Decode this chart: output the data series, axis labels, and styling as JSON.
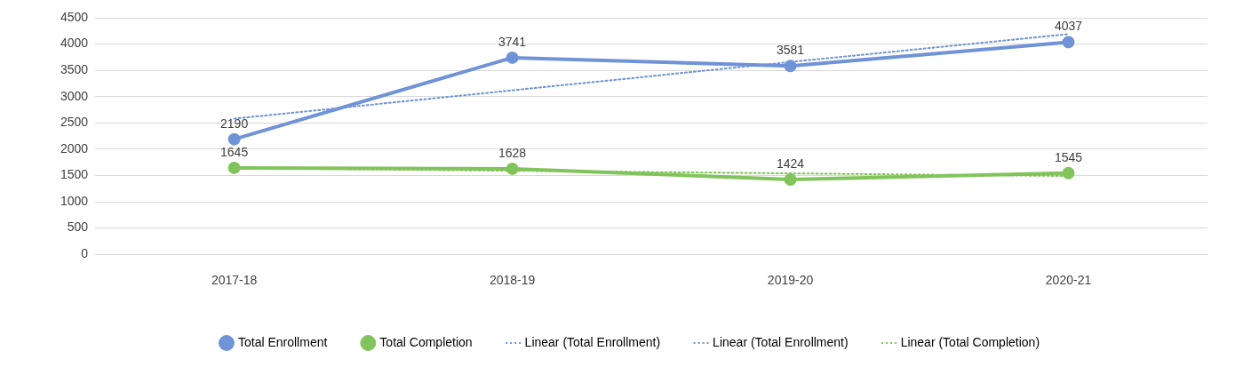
{
  "chart_data": {
    "type": "line",
    "categories": [
      "2017-18",
      "2018-19",
      "2019-20",
      "2020-21"
    ],
    "series": [
      {
        "name": "Total Enrollment",
        "color": "#6f93d6",
        "values": [
          2190,
          3741,
          3581,
          4037
        ],
        "value_labels": [
          "2190",
          "3741",
          "3581",
          "4037"
        ],
        "marker": "circle",
        "line_style": "solid"
      },
      {
        "name": "Total Completion",
        "color": "#82c45c",
        "values": [
          1645,
          1628,
          1424,
          1545
        ],
        "value_labels": [
          "1645",
          "1628",
          "1424",
          "1545"
        ],
        "marker": "circle",
        "line_style": "solid"
      },
      {
        "name": "Linear (Total Enrollment)",
        "color": "#6f93d6",
        "values": [
          2580,
          3120,
          3660,
          4190
        ],
        "marker": "none",
        "line_style": "dotted"
      },
      {
        "name": "Linear (Total Enrollment)",
        "color": "#6f93d6",
        "values": [
          null,
          null,
          null,
          null
        ],
        "marker": "none",
        "line_style": "dotted"
      },
      {
        "name": "Linear (Total Completion)",
        "color": "#82c45c",
        "values": [
          1640,
          1590,
          1540,
          1490
        ],
        "marker": "none",
        "line_style": "dotted"
      }
    ],
    "ylim": [
      0,
      4500
    ],
    "yticks": [
      0,
      500,
      1000,
      1500,
      2000,
      2500,
      3000,
      3500,
      4000,
      4500
    ],
    "grid": "y",
    "legend": "bottom"
  }
}
